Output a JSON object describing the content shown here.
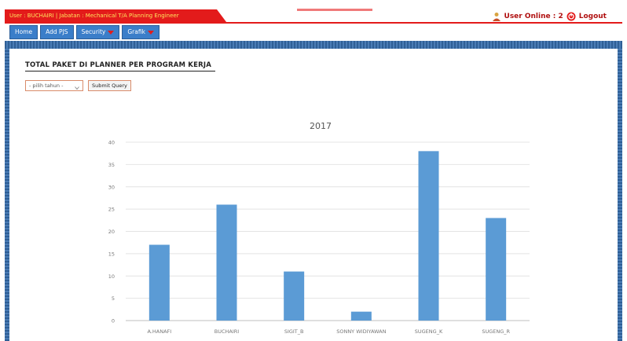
{
  "header": {
    "user_info": "User : BUCHAIRI | Jabatan : Mechanical T/A Planning Engineer",
    "online_text": "User Online : 2",
    "logout_label": "Logout"
  },
  "nav": {
    "items": [
      {
        "label": "Home",
        "has_caret": false
      },
      {
        "label": "Add PJS",
        "has_caret": false
      },
      {
        "label": "Security",
        "has_caret": true
      },
      {
        "label": "Grafik",
        "has_caret": true
      }
    ]
  },
  "page": {
    "title": "TOTAL PAKET DI PLANNER PER PROGRAM KERJA",
    "year_select": {
      "selected": "- pilih tahun -"
    },
    "submit_label": "Submit Query"
  },
  "colors": {
    "accent_red": "#e31b1b",
    "nav_blue": "#3b7ec9",
    "bar": "#5b9bd5"
  },
  "chart_data": {
    "type": "bar",
    "title": "2017",
    "categories": [
      "A.HANAFI",
      "BUCHAIRI",
      "SIGIT_B",
      "SONNY WIDIYAWAN",
      "SUGENG_K",
      "SUGENG_R"
    ],
    "values": [
      17,
      26,
      11,
      2,
      38,
      23
    ],
    "ylim": [
      0,
      40
    ],
    "yticks": [
      0,
      5,
      10,
      15,
      20,
      25,
      30,
      35,
      40
    ],
    "xlabel": "",
    "ylabel": "",
    "grid": true
  }
}
